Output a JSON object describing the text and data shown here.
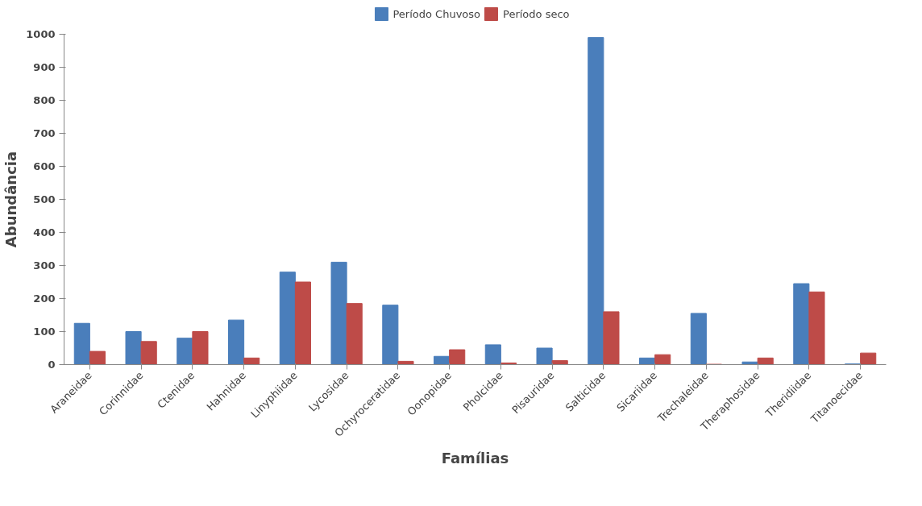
{
  "chart_data": {
    "type": "bar",
    "xlabel": "Famílias",
    "ylabel": "Abundância",
    "categories": [
      "Araneidae",
      "Corinnidae",
      "Ctenidae",
      "Hahnidae",
      "Linyphiidae",
      "Lycosidae",
      "Ochyroceratidae",
      "Oonopidae",
      "Pholcidae",
      "Pisauridae",
      "Salticidae",
      "Sicariidae",
      "Trechaleidae",
      "Theraphosidae",
      "Theridiidae",
      "Titanoecidae"
    ],
    "series": [
      {
        "name": "Período Chuvoso",
        "color": "#4a7ebb",
        "values": [
          125,
          100,
          80,
          135,
          280,
          310,
          180,
          25,
          60,
          50,
          990,
          20,
          155,
          8,
          245,
          2
        ]
      },
      {
        "name": "Período seco",
        "color": "#be4b48",
        "values": [
          40,
          70,
          100,
          20,
          250,
          185,
          10,
          45,
          5,
          12,
          160,
          30,
          1,
          20,
          220,
          35
        ]
      }
    ],
    "ylim": [
      0,
      1000
    ],
    "yticks": [
      0,
      100,
      200,
      300,
      400,
      500,
      600,
      700,
      800,
      900,
      1000
    ],
    "grid": false,
    "legend": "top"
  }
}
